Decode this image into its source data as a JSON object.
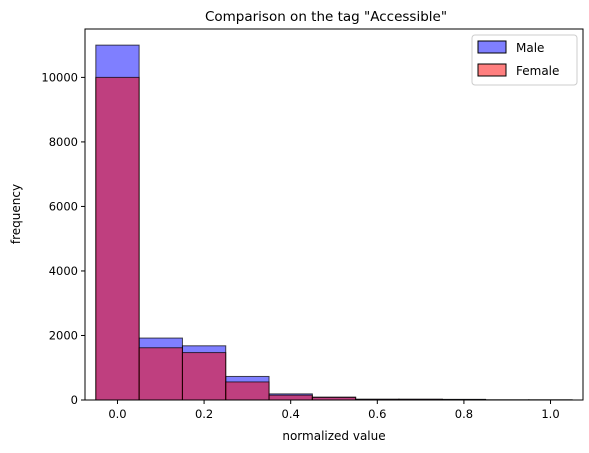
{
  "chart_data": {
    "type": "bar",
    "title": "Comparison on the tag \"Accessible\"",
    "xlabel": "normalized value",
    "ylabel": "frequency",
    "xlim": [
      -0.075,
      1.075
    ],
    "ylim": [
      0,
      11500
    ],
    "xticks": [
      0.0,
      0.2,
      0.4,
      0.6,
      0.8,
      1.0
    ],
    "xtick_labels": [
      "0.0",
      "0.2",
      "0.4",
      "0.6",
      "0.8",
      "1.0"
    ],
    "yticks": [
      0,
      2000,
      4000,
      6000,
      8000,
      10000
    ],
    "ytick_labels": [
      "0",
      "2000",
      "4000",
      "6000",
      "8000",
      "10000"
    ],
    "bin_edges": [
      -0.05,
      0.05,
      0.15,
      0.25,
      0.35,
      0.45,
      0.55,
      0.65,
      0.75,
      0.85,
      0.95,
      1.05
    ],
    "series": [
      {
        "name": "Male",
        "color": "#0000ff",
        "alpha": 0.5,
        "values": [
          11000,
          1920,
          1680,
          730,
          190,
          90,
          25,
          25,
          20,
          5,
          5
        ]
      },
      {
        "name": "Female",
        "color": "#ff0000",
        "alpha": 0.5,
        "values": [
          10000,
          1620,
          1470,
          560,
          150,
          80,
          20,
          20,
          15,
          4,
          4
        ]
      }
    ],
    "legend_position": "top-right",
    "grid": false
  }
}
